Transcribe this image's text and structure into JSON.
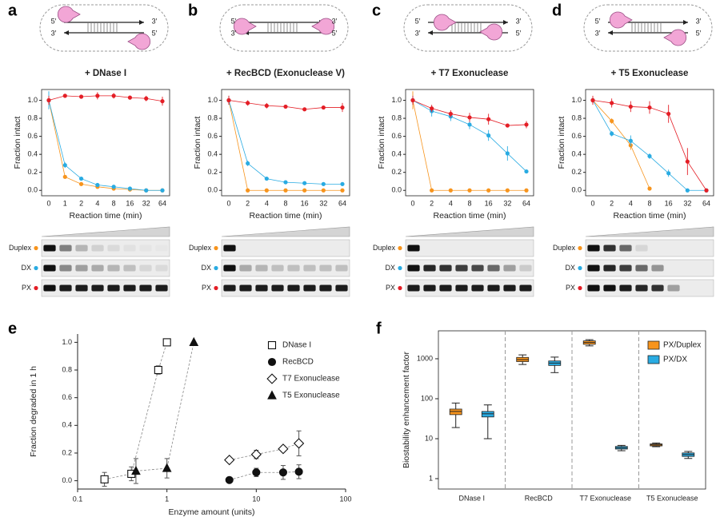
{
  "chart_data": [
    {
      "type": "line",
      "panel": "a",
      "title": "+ DNase I",
      "schematic_labels": [
        "5′",
        "3′",
        "3′",
        "5′"
      ],
      "xlabel": "Reaction time (min)",
      "ylabel": "Fraction intact",
      "categories": [
        "0",
        "1",
        "2",
        "4",
        "8",
        "16",
        "32",
        "64"
      ],
      "ylim": [
        -0.06,
        1.12
      ],
      "yticks": [
        {
          "value": 0,
          "label": "0.0"
        },
        0.2,
        0.4,
        0.6,
        0.8,
        {
          "value": 1,
          "label": "1.0"
        }
      ],
      "series": [
        {
          "name": "Duplex",
          "color": "#f7941d",
          "values": [
            1.0,
            0.15,
            0.07,
            0.04,
            0.02,
            0.01,
            0.0,
            0.0
          ],
          "errors": [
            0.03,
            0.02,
            0.02,
            0.01,
            0.01,
            0.01,
            0.01,
            0.01
          ]
        },
        {
          "name": "DX",
          "color": "#29abe2",
          "values": [
            1.0,
            0.28,
            0.13,
            0.06,
            0.04,
            0.02,
            0.0,
            0.0
          ],
          "errors": [
            0.1,
            0.03,
            0.02,
            0.01,
            0.01,
            0.01,
            0.01,
            0.01
          ]
        },
        {
          "name": "PX",
          "color": "#e41e26",
          "values": [
            1.0,
            1.05,
            1.04,
            1.05,
            1.05,
            1.03,
            1.02,
            0.99
          ],
          "errors": [
            0.05,
            0.02,
            0.02,
            0.04,
            0.03,
            0.02,
            0.03,
            0.05
          ]
        }
      ],
      "gel_band_intensity": [
        [
          1,
          0.5,
          0.25,
          0.12,
          0.08,
          0.05,
          0.03,
          0.02
        ],
        [
          1,
          0.45,
          0.35,
          0.3,
          0.25,
          0.2,
          0.1,
          0.08
        ],
        [
          1,
          0.95,
          0.95,
          0.95,
          0.95,
          0.95,
          0.95,
          0.95
        ]
      ]
    },
    {
      "type": "line",
      "panel": "b",
      "title": "+ RecBCD (Exonuclease V)",
      "schematic_labels": [
        "5′",
        "3′",
        "3′",
        "5′"
      ],
      "xlabel": "Reaction time (min)",
      "ylabel": "Fraction intact",
      "categories": [
        "0",
        "2",
        "4",
        "8",
        "16",
        "32",
        "64"
      ],
      "ylim": [
        -0.06,
        1.12
      ],
      "yticks": [
        {
          "value": 0,
          "label": "0.0"
        },
        0.2,
        0.4,
        0.6,
        0.8,
        {
          "value": 1,
          "label": "1.0"
        }
      ],
      "series": [
        {
          "name": "Duplex",
          "color": "#f7941d",
          "values": [
            1.0,
            0.0,
            0.0,
            0.0,
            0.0,
            0.0,
            0.0
          ],
          "errors": [
            0.05,
            0,
            0,
            0,
            0,
            0,
            0
          ]
        },
        {
          "name": "DX",
          "color": "#29abe2",
          "values": [
            1.0,
            0.3,
            0.13,
            0.09,
            0.08,
            0.07,
            0.07
          ],
          "errors": [
            0.05,
            0.03,
            0.01,
            0.01,
            0.02,
            0.01,
            0.01
          ]
        },
        {
          "name": "PX",
          "color": "#e41e26",
          "values": [
            1.0,
            0.97,
            0.94,
            0.93,
            0.9,
            0.92,
            0.92
          ],
          "errors": [
            0.05,
            0.03,
            0.03,
            0.02,
            0.01,
            0.02,
            0.05
          ]
        }
      ],
      "gel_band_intensity": [
        [
          1,
          0,
          0,
          0,
          0,
          0,
          0,
          0
        ],
        [
          1,
          0.3,
          0.25,
          0.2,
          0.2,
          0.2,
          0.2,
          0.2
        ],
        [
          0.95,
          0.95,
          0.95,
          0.95,
          0.95,
          0.95,
          0.95,
          0.95
        ]
      ]
    },
    {
      "type": "line",
      "panel": "c",
      "title": "+ T7 Exonuclease",
      "schematic_labels": [
        "5′",
        "3′",
        "3′",
        "5′"
      ],
      "xlabel": "Reaction time (min)",
      "ylabel": "Fraction intact",
      "categories": [
        "0",
        "2",
        "4",
        "8",
        "16",
        "32",
        "64"
      ],
      "ylim": [
        -0.06,
        1.12
      ],
      "yticks": [
        {
          "value": 0,
          "label": "0.0"
        },
        0.2,
        0.4,
        0.6,
        0.8,
        {
          "value": 1,
          "label": "1.0"
        }
      ],
      "series": [
        {
          "name": "Duplex",
          "color": "#f7941d",
          "values": [
            1.0,
            0.0,
            0.0,
            0.0,
            0.0,
            0.0,
            0.0
          ],
          "errors": [
            0.1,
            0,
            0,
            0,
            0,
            0,
            0
          ]
        },
        {
          "name": "DX",
          "color": "#29abe2",
          "values": [
            1.0,
            0.88,
            0.82,
            0.73,
            0.61,
            0.41,
            0.21
          ],
          "errors": [
            0.05,
            0.06,
            0.05,
            0.05,
            0.06,
            0.08,
            0.02
          ]
        },
        {
          "name": "PX",
          "color": "#e41e26",
          "values": [
            1.0,
            0.91,
            0.85,
            0.81,
            0.79,
            0.72,
            0.73
          ],
          "errors": [
            0.05,
            0.04,
            0.04,
            0.05,
            0.06,
            0.02,
            0.04
          ]
        }
      ],
      "gel_band_intensity": [
        [
          1,
          0,
          0,
          0,
          0,
          0,
          0,
          0
        ],
        [
          1,
          0.9,
          0.85,
          0.8,
          0.75,
          0.6,
          0.35,
          0.15
        ],
        [
          0.95,
          0.95,
          0.95,
          0.95,
          0.95,
          0.95,
          0.95,
          0.95
        ]
      ]
    },
    {
      "type": "line",
      "panel": "d",
      "title": "+ T5 Exonuclease",
      "schematic_labels": [
        "5′",
        "3′",
        "3′",
        "5′"
      ],
      "xlabel": "Reaction time (min)",
      "ylabel": "Fraction intact",
      "categories": [
        "0",
        "2",
        "4",
        "8",
        "16",
        "32",
        "64"
      ],
      "ylim": [
        -0.06,
        1.12
      ],
      "yticks": [
        {
          "value": 0,
          "label": "0.0"
        },
        0.2,
        0.4,
        0.6,
        0.8,
        {
          "value": 1,
          "label": "1.0"
        }
      ],
      "series": [
        {
          "name": "Duplex",
          "color": "#f7941d",
          "values": [
            1.0,
            0.77,
            0.5,
            0.02,
            null,
            null,
            null
          ],
          "errors": [
            0.03,
            0.03,
            0.05,
            0.01,
            null,
            null,
            null
          ]
        },
        {
          "name": "DX",
          "color": "#29abe2",
          "values": [
            1.0,
            0.63,
            0.55,
            0.38,
            0.19,
            0.0,
            0.0
          ],
          "errors": [
            0.03,
            0.03,
            0.06,
            0.03,
            0.04,
            0.01,
            0.01
          ]
        },
        {
          "name": "PX",
          "color": "#e41e26",
          "values": [
            1.0,
            0.97,
            0.93,
            0.92,
            0.85,
            0.32,
            0.0
          ],
          "errors": [
            0.05,
            0.05,
            0.06,
            0.07,
            0.1,
            0.15,
            0.01
          ]
        }
      ],
      "gel_band_intensity": [
        [
          1,
          0.85,
          0.6,
          0.1,
          0,
          0,
          0,
          0
        ],
        [
          1,
          0.9,
          0.8,
          0.6,
          0.4,
          0,
          0,
          0
        ],
        [
          1,
          1,
          0.95,
          0.9,
          0.85,
          0.35,
          0,
          0
        ]
      ]
    },
    {
      "type": "scatter",
      "panel": "e",
      "xlabel": "Enzyme amount (units)",
      "ylabel": "Fraction degraded in 1 h",
      "xlog": true,
      "xlim": [
        0.1,
        100
      ],
      "xticks": [
        0.1,
        1,
        10,
        100
      ],
      "ylim": [
        -0.06,
        1.06
      ],
      "yticks": [
        {
          "value": 0,
          "label": "0.0"
        },
        0.2,
        0.4,
        0.6,
        0.8,
        {
          "value": 1,
          "label": "1.0"
        }
      ],
      "legend": "upper right",
      "series": [
        {
          "name": "DNase I",
          "marker": "square",
          "filled": false,
          "x": [
            0.2,
            0.4,
            0.8,
            1.0
          ],
          "values": [
            0.01,
            0.05,
            0.8,
            1.0
          ],
          "errors": [
            0.05,
            0.05,
            0.03,
            0
          ]
        },
        {
          "name": "RecBCD",
          "marker": "circle",
          "filled": true,
          "x": [
            5,
            10,
            20,
            30
          ],
          "values": [
            0.005,
            0.06,
            0.06,
            0.065
          ],
          "errors": [
            0.01,
            0.03,
            0.05,
            0.05
          ]
        },
        {
          "name": "T7 Exonuclease",
          "marker": "diamond",
          "filled": false,
          "x": [
            5,
            10,
            20,
            30
          ],
          "values": [
            0.15,
            0.19,
            0.23,
            0.27
          ],
          "errors": [
            0.01,
            0.03,
            0.02,
            0.09
          ]
        },
        {
          "name": "T5 Exonuclease",
          "marker": "triangle",
          "filled": true,
          "x": [
            0.45,
            1.0,
            2.0
          ],
          "values": [
            0.07,
            0.09,
            1.0
          ],
          "errors": [
            0.09,
            0.07,
            0
          ]
        }
      ]
    },
    {
      "type": "box",
      "panel": "f",
      "ylabel": "Biostability enhancement factor",
      "ylog": true,
      "ylim": [
        0.55,
        5000
      ],
      "yticks": [
        1,
        10,
        100,
        1000
      ],
      "legend": "upper right",
      "categories": [
        "DNase I",
        "RecBCD",
        "T7 Exonuclease",
        "T5 Exonuclease"
      ],
      "series": [
        {
          "name": "PX/Duplex",
          "color": "#f7941d",
          "values": [
            {
              "low": 19,
              "q1": 40,
              "median": 48,
              "q3": 55,
              "high": 78
            },
            {
              "low": 720,
              "q1": 850,
              "median": 950,
              "q3": 1080,
              "high": 1250
            },
            {
              "low": 2100,
              "q1": 2300,
              "median": 2550,
              "q3": 2800,
              "high": 3000
            },
            {
              "low": 6.3,
              "q1": 6.6,
              "median": 7,
              "q3": 7.4,
              "high": 7.8
            }
          ]
        },
        {
          "name": "PX/DX",
          "color": "#29abe2",
          "values": [
            {
              "low": 10,
              "q1": 35,
              "median": 42,
              "q3": 48,
              "high": 70
            },
            {
              "low": 450,
              "q1": 680,
              "median": 780,
              "q3": 880,
              "high": 1100
            },
            {
              "low": 5,
              "q1": 5.5,
              "median": 5.9,
              "q3": 6.4,
              "high": 6.8
            },
            {
              "low": 3.2,
              "q1": 3.6,
              "median": 4,
              "q3": 4.4,
              "high": 4.8
            }
          ]
        }
      ]
    }
  ]
}
